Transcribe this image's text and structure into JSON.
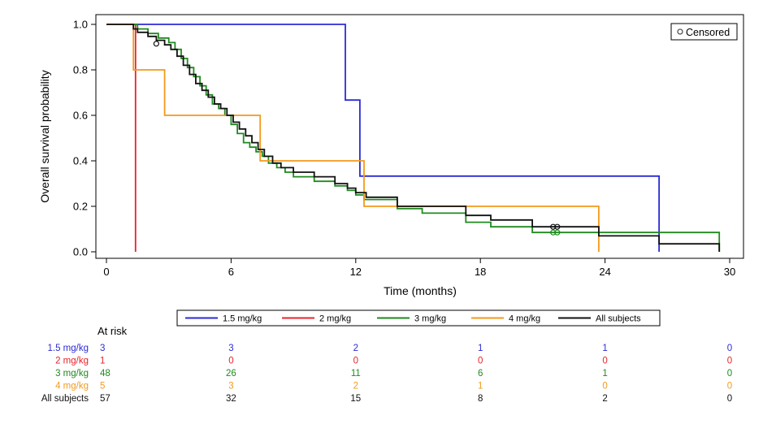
{
  "chart_data": {
    "type": "line",
    "xlabel": "Time (months)",
    "ylabel": "Overall survival probability",
    "xlim": [
      0,
      30
    ],
    "ylim": [
      0,
      1
    ],
    "x_ticks": [
      "0",
      "6",
      "12",
      "18",
      "24",
      "30"
    ],
    "y_ticks": [
      "0.0",
      "0.2",
      "0.4",
      "0.6",
      "0.8",
      "1.0"
    ],
    "censor_legend": "Censored",
    "legend_placement": "bottom",
    "series": [
      {
        "name": "1.5 mg/kg",
        "color": "#2b2bd6",
        "points": [
          [
            0,
            1.0
          ],
          [
            11.5,
            1.0
          ],
          [
            11.5,
            0.667
          ],
          [
            12.2,
            0.667
          ],
          [
            12.2,
            0.333
          ],
          [
            26.6,
            0.333
          ],
          [
            26.6,
            0.0
          ]
        ]
      },
      {
        "name": "2 mg/kg",
        "color": "#e8232a",
        "points": [
          [
            0,
            1.0
          ],
          [
            1.4,
            1.0
          ],
          [
            1.4,
            0.0
          ]
        ]
      },
      {
        "name": "3 mg/kg",
        "color": "#1f8a1f",
        "points": [
          [
            0,
            1.0
          ],
          [
            1.5,
            1.0
          ],
          [
            1.5,
            0.98
          ],
          [
            2.0,
            0.98
          ],
          [
            2.0,
            0.96
          ],
          [
            2.5,
            0.96
          ],
          [
            2.5,
            0.94
          ],
          [
            3.0,
            0.94
          ],
          [
            3.0,
            0.92
          ],
          [
            3.3,
            0.92
          ],
          [
            3.3,
            0.89
          ],
          [
            3.6,
            0.89
          ],
          [
            3.6,
            0.85
          ],
          [
            3.9,
            0.85
          ],
          [
            3.9,
            0.81
          ],
          [
            4.2,
            0.81
          ],
          [
            4.2,
            0.77
          ],
          [
            4.5,
            0.77
          ],
          [
            4.5,
            0.73
          ],
          [
            4.8,
            0.73
          ],
          [
            4.8,
            0.69
          ],
          [
            5.1,
            0.69
          ],
          [
            5.1,
            0.65
          ],
          [
            5.4,
            0.65
          ],
          [
            5.4,
            0.63
          ],
          [
            5.7,
            0.63
          ],
          [
            5.7,
            0.6
          ],
          [
            6.0,
            0.6
          ],
          [
            6.0,
            0.56
          ],
          [
            6.3,
            0.56
          ],
          [
            6.3,
            0.52
          ],
          [
            6.6,
            0.52
          ],
          [
            6.6,
            0.48
          ],
          [
            6.9,
            0.48
          ],
          [
            6.9,
            0.46
          ],
          [
            7.2,
            0.46
          ],
          [
            7.2,
            0.44
          ],
          [
            7.5,
            0.44
          ],
          [
            7.5,
            0.42
          ],
          [
            7.8,
            0.42
          ],
          [
            7.8,
            0.39
          ],
          [
            8.2,
            0.39
          ],
          [
            8.2,
            0.37
          ],
          [
            8.6,
            0.37
          ],
          [
            8.6,
            0.35
          ],
          [
            9.0,
            0.35
          ],
          [
            9.0,
            0.33
          ],
          [
            10.0,
            0.33
          ],
          [
            10.0,
            0.31
          ],
          [
            11.0,
            0.31
          ],
          [
            11.0,
            0.29
          ],
          [
            11.6,
            0.29
          ],
          [
            11.6,
            0.27
          ],
          [
            12.0,
            0.27
          ],
          [
            12.0,
            0.25
          ],
          [
            12.4,
            0.25
          ],
          [
            12.4,
            0.23
          ],
          [
            14.0,
            0.23
          ],
          [
            14.0,
            0.19
          ],
          [
            15.2,
            0.19
          ],
          [
            15.2,
            0.17
          ],
          [
            17.3,
            0.17
          ],
          [
            17.3,
            0.13
          ],
          [
            18.5,
            0.13
          ],
          [
            18.5,
            0.11
          ],
          [
            20.5,
            0.11
          ],
          [
            20.5,
            0.085
          ],
          [
            29.5,
            0.085
          ],
          [
            29.5,
            0.0
          ]
        ]
      },
      {
        "name": "4 mg/kg",
        "color": "#f39a1c",
        "points": [
          [
            0,
            1.0
          ],
          [
            1.3,
            1.0
          ],
          [
            1.3,
            0.8
          ],
          [
            2.8,
            0.8
          ],
          [
            2.8,
            0.6
          ],
          [
            7.4,
            0.6
          ],
          [
            7.4,
            0.4
          ],
          [
            12.4,
            0.4
          ],
          [
            12.4,
            0.2
          ],
          [
            23.7,
            0.2
          ],
          [
            23.7,
            0.0
          ]
        ]
      },
      {
        "name": "All subjects",
        "color": "#111111",
        "points": [
          [
            0,
            1.0
          ],
          [
            1.3,
            1.0
          ],
          [
            1.3,
            0.98
          ],
          [
            1.5,
            0.98
          ],
          [
            1.5,
            0.965
          ],
          [
            2.0,
            0.965
          ],
          [
            2.0,
            0.947
          ],
          [
            2.4,
            0.947
          ],
          [
            2.4,
            0.93
          ],
          [
            2.8,
            0.93
          ],
          [
            2.8,
            0.91
          ],
          [
            3.1,
            0.91
          ],
          [
            3.1,
            0.89
          ],
          [
            3.4,
            0.89
          ],
          [
            3.4,
            0.86
          ],
          [
            3.7,
            0.86
          ],
          [
            3.7,
            0.82
          ],
          [
            4.0,
            0.82
          ],
          [
            4.0,
            0.78
          ],
          [
            4.3,
            0.78
          ],
          [
            4.3,
            0.74
          ],
          [
            4.6,
            0.74
          ],
          [
            4.6,
            0.71
          ],
          [
            4.9,
            0.71
          ],
          [
            4.9,
            0.68
          ],
          [
            5.2,
            0.68
          ],
          [
            5.2,
            0.65
          ],
          [
            5.5,
            0.65
          ],
          [
            5.5,
            0.63
          ],
          [
            5.8,
            0.63
          ],
          [
            5.8,
            0.6
          ],
          [
            6.1,
            0.6
          ],
          [
            6.1,
            0.57
          ],
          [
            6.4,
            0.57
          ],
          [
            6.4,
            0.54
          ],
          [
            6.7,
            0.54
          ],
          [
            6.7,
            0.51
          ],
          [
            7.0,
            0.51
          ],
          [
            7.0,
            0.48
          ],
          [
            7.3,
            0.48
          ],
          [
            7.3,
            0.45
          ],
          [
            7.6,
            0.45
          ],
          [
            7.6,
            0.42
          ],
          [
            8.0,
            0.42
          ],
          [
            8.0,
            0.39
          ],
          [
            8.4,
            0.39
          ],
          [
            8.4,
            0.37
          ],
          [
            9.0,
            0.37
          ],
          [
            9.0,
            0.35
          ],
          [
            10.0,
            0.35
          ],
          [
            10.0,
            0.33
          ],
          [
            11.0,
            0.33
          ],
          [
            11.0,
            0.3
          ],
          [
            11.6,
            0.3
          ],
          [
            11.6,
            0.28
          ],
          [
            12.0,
            0.28
          ],
          [
            12.0,
            0.26
          ],
          [
            12.5,
            0.26
          ],
          [
            12.5,
            0.24
          ],
          [
            14.0,
            0.24
          ],
          [
            14.0,
            0.2
          ],
          [
            17.3,
            0.2
          ],
          [
            17.3,
            0.16
          ],
          [
            18.5,
            0.16
          ],
          [
            18.5,
            0.14
          ],
          [
            20.5,
            0.14
          ],
          [
            20.5,
            0.11
          ],
          [
            23.7,
            0.11
          ],
          [
            23.7,
            0.07
          ],
          [
            26.6,
            0.07
          ],
          [
            26.6,
            0.035
          ],
          [
            29.5,
            0.035
          ],
          [
            29.5,
            0.0
          ]
        ]
      }
    ],
    "censor_marks": [
      {
        "series": "All subjects",
        "x": 2.4,
        "y": 0.915
      },
      {
        "series": "3 mg/kg",
        "x": 21.5,
        "y": 0.085
      },
      {
        "series": "3 mg/kg",
        "x": 21.7,
        "y": 0.085
      },
      {
        "series": "All subjects",
        "x": 21.5,
        "y": 0.11
      },
      {
        "series": "All subjects",
        "x": 21.7,
        "y": 0.11
      }
    ],
    "at_risk": {
      "title": "At risk",
      "times": [
        0,
        6,
        12,
        18,
        24,
        30
      ],
      "rows": [
        {
          "label": "1.5 mg/kg",
          "color": "#2b2bd6",
          "values": [
            "3",
            "3",
            "2",
            "1",
            "1",
            "0"
          ]
        },
        {
          "label": "2 mg/kg",
          "color": "#e8232a",
          "values": [
            "1",
            "0",
            "0",
            "0",
            "0",
            "0"
          ]
        },
        {
          "label": "3 mg/kg",
          "color": "#1f8a1f",
          "values": [
            "48",
            "26",
            "11",
            "6",
            "1",
            "0"
          ]
        },
        {
          "label": "4 mg/kg",
          "color": "#f39a1c",
          "values": [
            "5",
            "3",
            "2",
            "1",
            "0",
            "0"
          ]
        },
        {
          "label": "All subjects",
          "color": "#111111",
          "values": [
            "57",
            "32",
            "15",
            "8",
            "2",
            "0"
          ]
        }
      ]
    }
  }
}
